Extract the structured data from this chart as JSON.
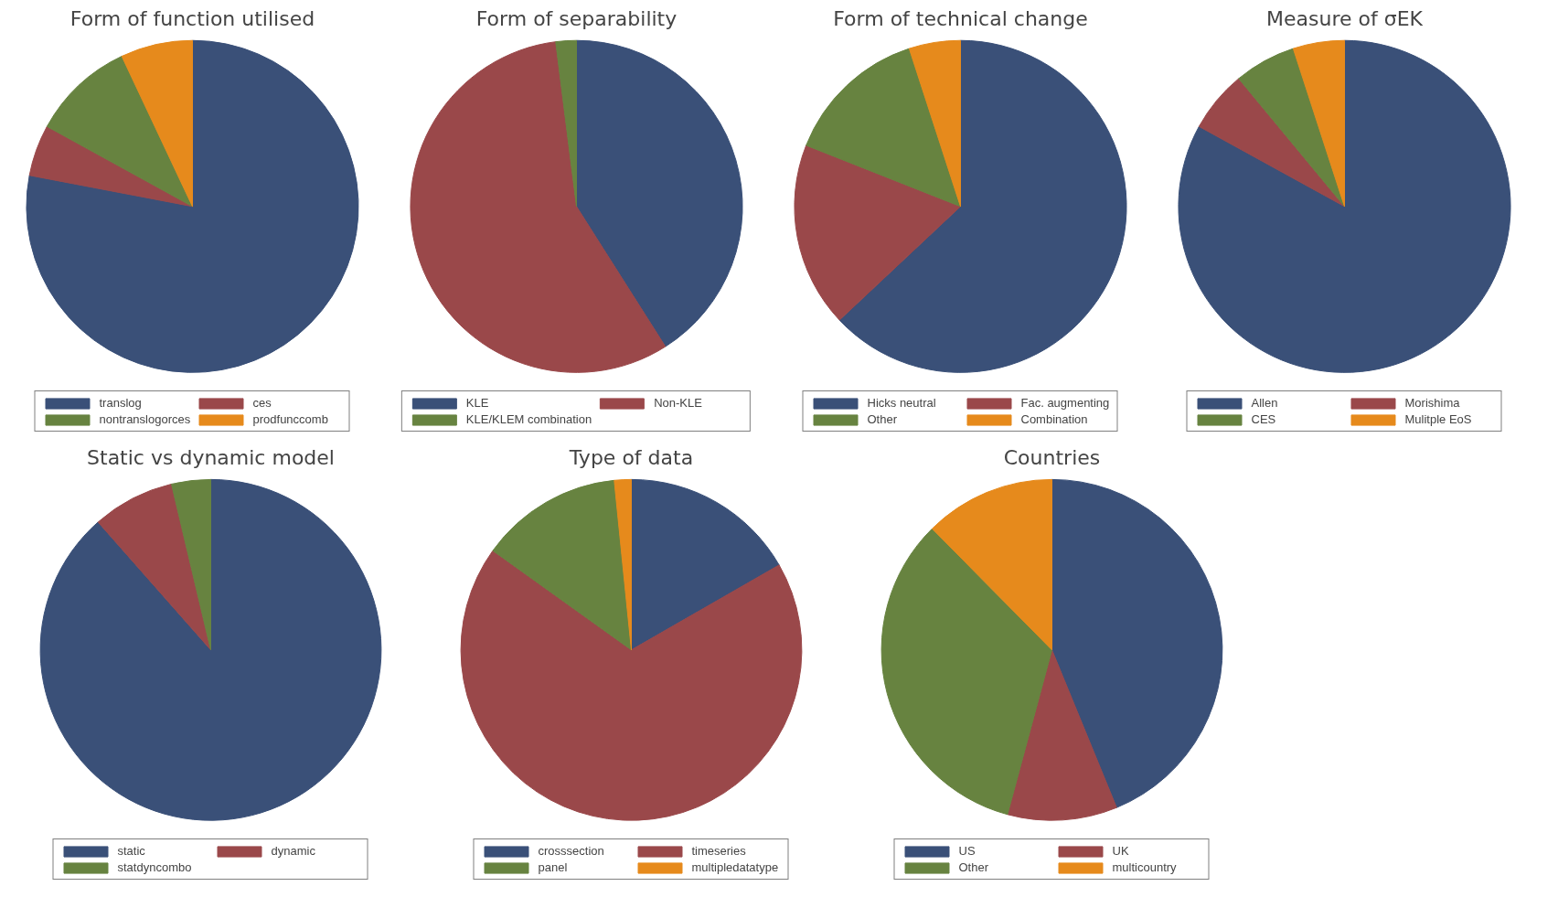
{
  "chart_data": [
    {
      "type": "pie",
      "title": "Form of function utilised",
      "categories": [
        "translog",
        "ces",
        "nontranslogorces",
        "prodfunccomb"
      ],
      "values": [
        78,
        5,
        10,
        7
      ],
      "colors": [
        "#3a5078",
        "#9a484a",
        "#678340",
        "#e68a1c"
      ],
      "legend": "bottom"
    },
    {
      "type": "pie",
      "title": "Form of separability",
      "categories": [
        "KLE",
        "Non-KLE",
        "KLE/KLEM combination"
      ],
      "values": [
        41,
        57,
        2
      ],
      "colors": [
        "#3a5078",
        "#9a484a",
        "#678340"
      ],
      "legend": "bottom"
    },
    {
      "type": "pie",
      "title": "Form of technical change",
      "categories": [
        "Hicks neutral",
        "Fac. augmenting",
        "Other",
        "Combination"
      ],
      "values": [
        63,
        18,
        14,
        5
      ],
      "colors": [
        "#3a5078",
        "#9a484a",
        "#678340",
        "#e68a1c"
      ],
      "legend": "bottom"
    },
    {
      "type": "pie",
      "title": "Measure of σEK",
      "categories": [
        "Allen",
        "Morishima",
        "CES",
        "Mulitple EoS"
      ],
      "values": [
        83,
        6,
        6,
        5
      ],
      "colors": [
        "#3a5078",
        "#9a484a",
        "#678340",
        "#e68a1c"
      ],
      "legend": "bottom"
    },
    {
      "type": "pie",
      "title": "Static vs dynamic model",
      "categories": [
        "static",
        "dynamic",
        "statdyncombo"
      ],
      "values": [
        88.5,
        7.8,
        3.7
      ],
      "colors": [
        "#3a5078",
        "#9a484a",
        "#678340"
      ],
      "legend": "bottom"
    },
    {
      "type": "pie",
      "title": "Type of data",
      "categories": [
        "crosssection",
        "timeseries",
        "panel",
        "multipledatatype"
      ],
      "values": [
        16.7,
        68.2,
        13.5,
        1.6
      ],
      "colors": [
        "#3a5078",
        "#9a484a",
        "#678340",
        "#e68a1c"
      ],
      "legend": "bottom"
    },
    {
      "type": "pie",
      "title": "Countries",
      "categories": [
        "US",
        "UK",
        "Other",
        "multicountry"
      ],
      "values": [
        43.8,
        10.4,
        33.4,
        12.4
      ],
      "colors": [
        "#3a5078",
        "#9a484a",
        "#678340",
        "#e68a1c"
      ],
      "legend": "bottom"
    }
  ]
}
